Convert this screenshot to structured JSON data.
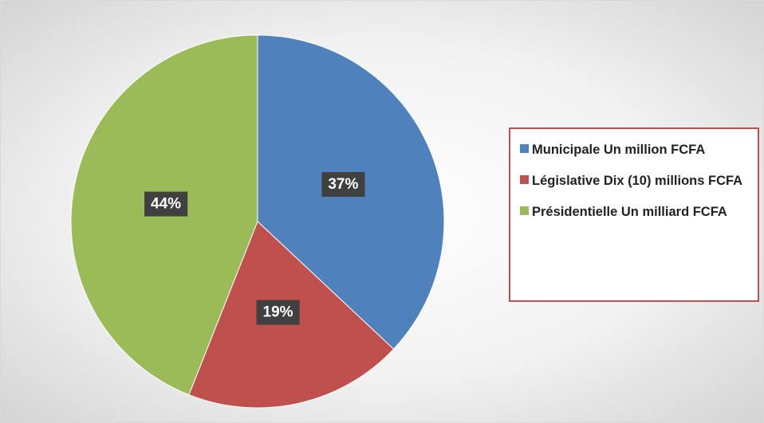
{
  "chart_data": {
    "type": "pie",
    "categories": [
      "Municipale Un million FCFA",
      "Législative Dix (10) millions FCFA",
      "Présidentielle Un milliard FCFA"
    ],
    "values": [
      37,
      19,
      44
    ],
    "value_labels": [
      "37%",
      "19%",
      "44%"
    ],
    "colors": [
      "#4f81bd",
      "#c0504d",
      "#9bbb59"
    ],
    "legend": "right"
  }
}
